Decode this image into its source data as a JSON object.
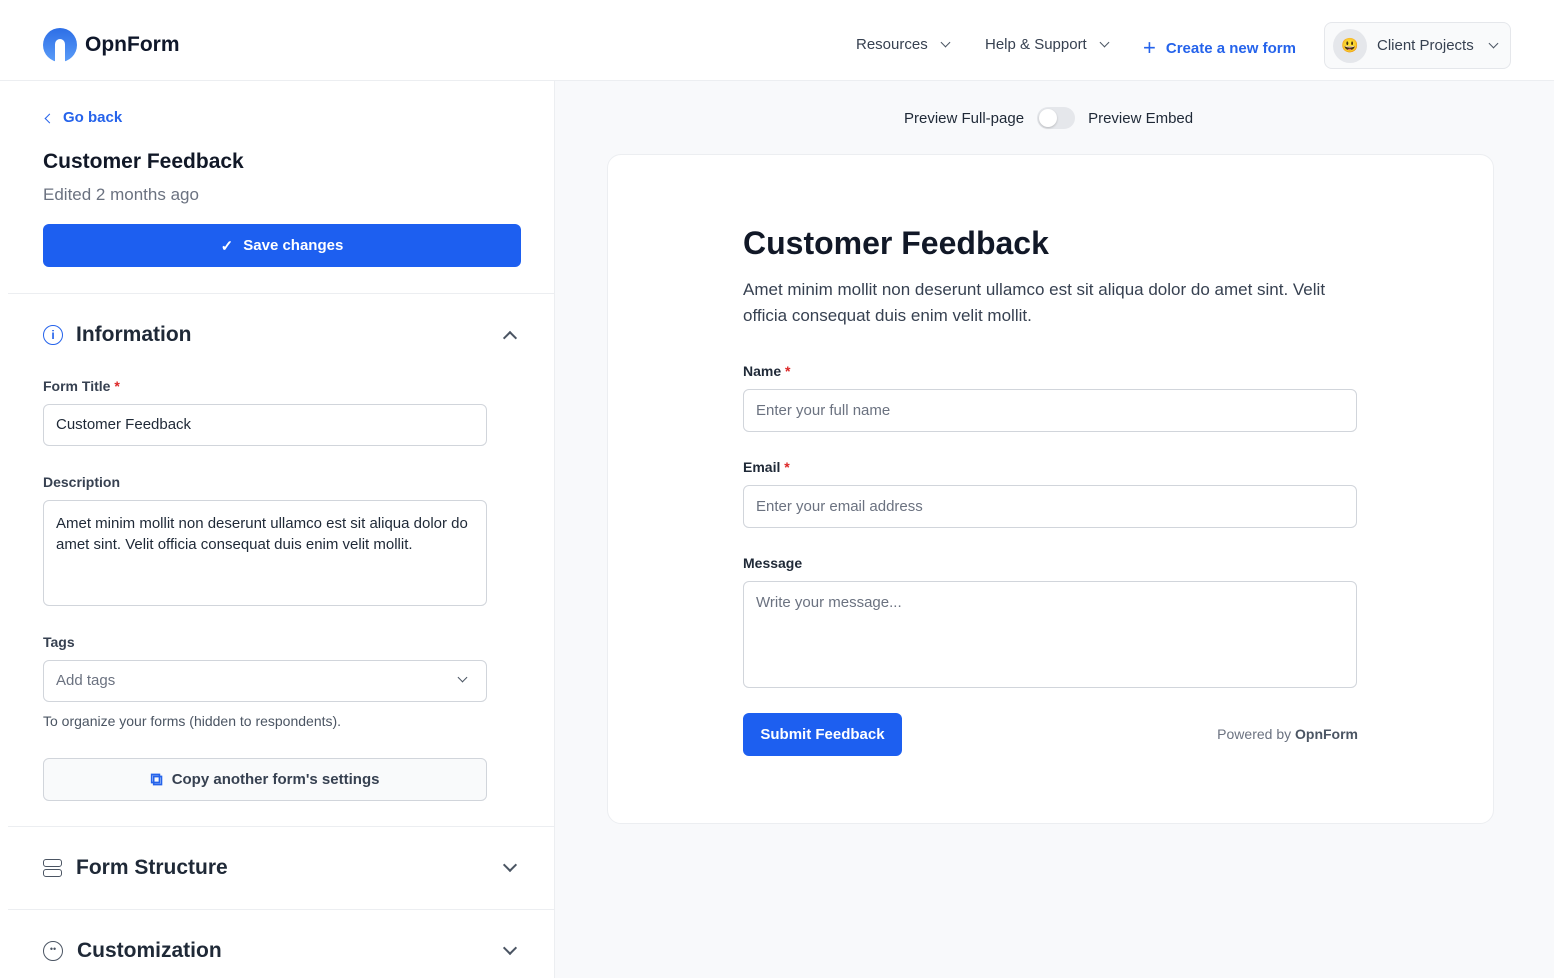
{
  "header": {
    "brand": "OpnForm",
    "nav": [
      {
        "label": "Resources"
      },
      {
        "label": "Help & Support"
      }
    ],
    "create_label": "Create a new form",
    "workspace": {
      "name": "Client Projects",
      "emoji": "😃"
    }
  },
  "sidebar": {
    "back_label": "Go back",
    "form_name": "Customer Feedback",
    "edited": "Edited 2 months ago",
    "save_label": "Save changes",
    "sections": [
      {
        "title": "Information",
        "expanded": true
      },
      {
        "title": "Form Structure",
        "expanded": false
      },
      {
        "title": "Customization",
        "expanded": false
      }
    ],
    "form_title_label": "Form Title",
    "form_title_value": "Customer Feedback",
    "description_label": "Description",
    "description_value": "Amet minim mollit non deserunt ullamco est sit aliqua dolor do amet sint. Velit officia consequat duis enim velit mollit.",
    "tags_label": "Tags",
    "tags_placeholder": "Add tags",
    "tags_help": "To organize your forms (hidden to respondents).",
    "copy_label": "Copy another form's settings"
  },
  "preview": {
    "full_page_label": "Preview Full-page",
    "embed_label": "Preview Embed",
    "embed_enabled": false,
    "title": "Customer Feedback",
    "description": "Amet minim mollit non deserunt ullamco est sit aliqua dolor do amet sint. Velit officia consequat duis enim velit mollit.",
    "fields": [
      {
        "label": "Name",
        "required": true,
        "placeholder": "Enter your full name"
      },
      {
        "label": "Email",
        "required": true,
        "placeholder": "Enter your email address"
      },
      {
        "label": "Message",
        "required": false,
        "placeholder": "Write your message..."
      }
    ],
    "submit_label": "Submit Feedback",
    "powered_by": "Powered by",
    "powered_brand": "OpnForm"
  },
  "colors": {
    "accent": "#1d5ff0"
  }
}
